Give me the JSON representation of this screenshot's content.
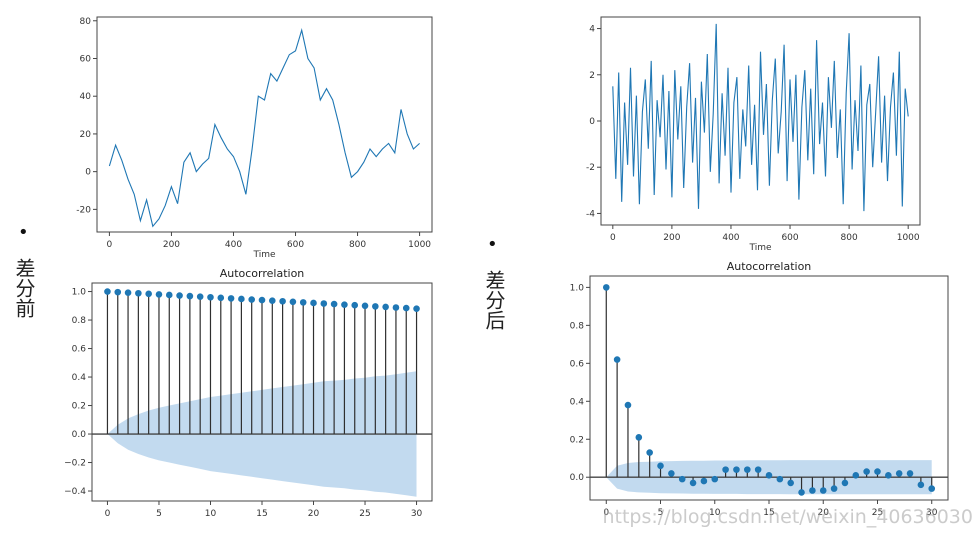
{
  "labels": {
    "left_bullet": "•",
    "right_bullet": "•",
    "left_caption": "差分前",
    "right_caption": "差分后",
    "watermark": "https://blog.csdn.net/weixin_40636030"
  },
  "colors": {
    "line": "#1f77b4",
    "stem": "#2f2f2f",
    "marker": "#1f77b4",
    "band": "#aecde9",
    "axis": "#444444"
  },
  "chart_data": [
    {
      "id": "ts_before",
      "type": "line",
      "title": "",
      "xlabel": "Time",
      "ylabel": "",
      "xlim": [
        -40,
        1040
      ],
      "ylim": [
        -32,
        82
      ],
      "xticks": [
        0,
        200,
        400,
        600,
        800,
        1000
      ],
      "yticks": [
        -20,
        0,
        20,
        40,
        60,
        80
      ],
      "series": [
        {
          "x": [
            0,
            20,
            40,
            60,
            80,
            100,
            120,
            140,
            160,
            180,
            200,
            220,
            240,
            260,
            280,
            300,
            320,
            340,
            360,
            380,
            400,
            420,
            440,
            460,
            480,
            500,
            520,
            540,
            560,
            580,
            600,
            620,
            640,
            660,
            680,
            700,
            720,
            740,
            760,
            780,
            800,
            820,
            840,
            860,
            880,
            900,
            920,
            940,
            960,
            980,
            1000
          ],
          "values": [
            3,
            14,
            6,
            -4,
            -12,
            -26,
            -15,
            -29,
            -25,
            -18,
            -8,
            -17,
            5,
            10,
            0,
            4,
            7,
            25,
            18,
            12,
            8,
            0,
            -12,
            12,
            40,
            38,
            52,
            48,
            55,
            62,
            64,
            75,
            60,
            55,
            38,
            44,
            38,
            25,
            10,
            -3,
            0,
            5,
            12,
            8,
            12,
            15,
            10,
            33,
            20,
            12,
            15
          ]
        }
      ]
    },
    {
      "id": "ts_after",
      "type": "line",
      "title": "",
      "xlabel": "Time",
      "ylabel": "",
      "xlim": [
        -40,
        1040
      ],
      "ylim": [
        -4.5,
        4.5
      ],
      "xticks": [
        0,
        200,
        400,
        600,
        800,
        1000
      ],
      "yticks": [
        -4,
        -2,
        0,
        2,
        4
      ],
      "series": [
        {
          "x": [
            0,
            10,
            20,
            30,
            40,
            50,
            60,
            70,
            80,
            90,
            100,
            110,
            120,
            130,
            140,
            150,
            160,
            170,
            180,
            190,
            200,
            210,
            220,
            230,
            240,
            250,
            260,
            270,
            280,
            290,
            300,
            310,
            320,
            330,
            340,
            350,
            360,
            370,
            380,
            390,
            400,
            410,
            420,
            430,
            440,
            450,
            460,
            470,
            480,
            490,
            500,
            510,
            520,
            530,
            540,
            550,
            560,
            570,
            580,
            590,
            600,
            610,
            620,
            630,
            640,
            650,
            660,
            670,
            680,
            690,
            700,
            710,
            720,
            730,
            740,
            750,
            760,
            770,
            780,
            790,
            800,
            810,
            820,
            830,
            840,
            850,
            860,
            870,
            880,
            890,
            900,
            910,
            920,
            930,
            940,
            950,
            960,
            970,
            980,
            990,
            1000
          ],
          "values": [
            1.5,
            -2.5,
            2.1,
            -3.5,
            0.8,
            -1.9,
            2.3,
            -2.4,
            1.1,
            -3.6,
            0.4,
            1.8,
            -1.2,
            2.6,
            -3.2,
            0.9,
            -0.7,
            2.0,
            -2.1,
            1.3,
            -3.3,
            2.2,
            -0.8,
            1.5,
            -2.9,
            0.6,
            2.5,
            -1.8,
            1.0,
            -3.8,
            1.7,
            -0.5,
            2.9,
            -2.2,
            0.3,
            4.2,
            -2.7,
            1.2,
            -1.5,
            2.3,
            -3.1,
            0.8,
            1.9,
            -2.5,
            0.5,
            -1.1,
            2.4,
            -1.9,
            0.7,
            -3.0,
            3.0,
            -0.6,
            1.6,
            -2.8,
            0.9,
            2.7,
            -1.4,
            0.4,
            3.3,
            -2.6,
            1.8,
            -0.9,
            2.0,
            -3.4,
            0.6,
            2.2,
            -1.7,
            1.4,
            -2.3,
            3.5,
            -1.0,
            0.8,
            -2.4,
            1.9,
            -0.3,
            2.6,
            -1.6,
            0.5,
            -3.6,
            1.2,
            3.8,
            -2.1,
            0.9,
            -1.3,
            2.4,
            -3.9,
            0.7,
            1.6,
            -2.0,
            0.4,
            2.8,
            -1.8,
            1.1,
            -2.6,
            0.6,
            2.1,
            -1.5,
            3.0,
            -3.7,
            1.4,
            0.2
          ]
        }
      ]
    },
    {
      "id": "acf_before",
      "type": "stem",
      "title": "Autocorrelation",
      "xlabel": "",
      "ylabel": "",
      "xlim": [
        -1.5,
        31.5
      ],
      "ylim": [
        -0.47,
        1.06
      ],
      "xticks": [
        0,
        5,
        10,
        15,
        20,
        25,
        30
      ],
      "yticks": [
        -0.4,
        -0.2,
        0.0,
        0.2,
        0.4,
        0.6,
        0.8,
        1.0
      ],
      "x": [
        0,
        1,
        2,
        3,
        4,
        5,
        6,
        7,
        8,
        9,
        10,
        11,
        12,
        13,
        14,
        15,
        16,
        17,
        18,
        19,
        20,
        21,
        22,
        23,
        24,
        25,
        26,
        27,
        28,
        29,
        30
      ],
      "values": [
        1.0,
        0.996,
        0.992,
        0.988,
        0.984,
        0.98,
        0.976,
        0.972,
        0.968,
        0.964,
        0.96,
        0.956,
        0.952,
        0.948,
        0.944,
        0.94,
        0.936,
        0.932,
        0.928,
        0.924,
        0.92,
        0.916,
        0.912,
        0.908,
        0.904,
        0.9,
        0.896,
        0.892,
        0.888,
        0.884,
        0.88
      ],
      "confidence_band": [
        0.0,
        0.065,
        0.11,
        0.14,
        0.165,
        0.185,
        0.2,
        0.215,
        0.23,
        0.245,
        0.26,
        0.27,
        0.28,
        0.29,
        0.3,
        0.31,
        0.32,
        0.33,
        0.34,
        0.35,
        0.36,
        0.37,
        0.375,
        0.38,
        0.39,
        0.395,
        0.405,
        0.41,
        0.42,
        0.43,
        0.44
      ]
    },
    {
      "id": "acf_after",
      "type": "stem",
      "title": "Autocorrelation",
      "xlabel": "",
      "ylabel": "",
      "xlim": [
        -1.5,
        31.5
      ],
      "ylim": [
        -0.12,
        1.06
      ],
      "xticks": [
        0,
        5,
        10,
        15,
        20,
        25,
        30
      ],
      "yticks": [
        0.0,
        0.2,
        0.4,
        0.6,
        0.8,
        1.0
      ],
      "x": [
        0,
        1,
        2,
        3,
        4,
        5,
        6,
        7,
        8,
        9,
        10,
        11,
        12,
        13,
        14,
        15,
        16,
        17,
        18,
        19,
        20,
        21,
        22,
        23,
        24,
        25,
        26,
        27,
        28,
        29,
        30
      ],
      "values": [
        1.0,
        0.62,
        0.38,
        0.21,
        0.13,
        0.06,
        0.02,
        -0.01,
        -0.03,
        -0.02,
        -0.01,
        0.04,
        0.04,
        0.04,
        0.04,
        0.01,
        -0.01,
        -0.03,
        -0.08,
        -0.07,
        -0.07,
        -0.06,
        -0.03,
        0.01,
        0.03,
        0.03,
        0.01,
        0.02,
        0.02,
        -0.04,
        -0.06
      ],
      "confidence_band": [
        0.0,
        0.06,
        0.075,
        0.08,
        0.082,
        0.084,
        0.085,
        0.086,
        0.087,
        0.087,
        0.088,
        0.088,
        0.088,
        0.089,
        0.089,
        0.089,
        0.089,
        0.09,
        0.09,
        0.09,
        0.09,
        0.09,
        0.09,
        0.09,
        0.09,
        0.09,
        0.09,
        0.09,
        0.09,
        0.09,
        0.09
      ]
    }
  ]
}
